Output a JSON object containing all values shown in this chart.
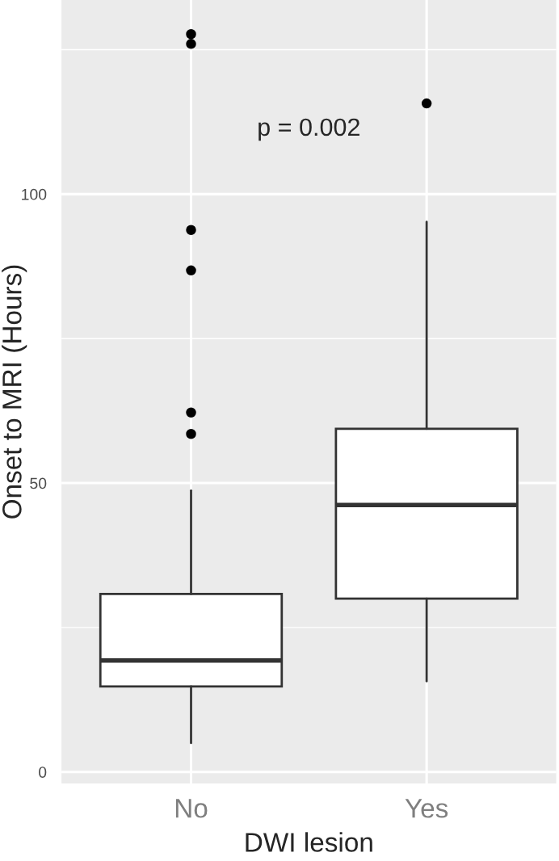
{
  "chart_data": {
    "type": "box",
    "xlabel": "DWI lesion",
    "ylabel": "Onset to MRI (Hours)",
    "categories": [
      "No",
      "Yes"
    ],
    "boxes": [
      {
        "low": 5,
        "q1": 14.8,
        "median": 19.3,
        "q3": 30.8,
        "high": 48.7,
        "outliers": [
          58.5,
          62.2,
          86.8,
          93.8,
          126,
          127.7
        ]
      },
      {
        "low": 15.7,
        "q1": 30,
        "median": 46.2,
        "q3": 59.4,
        "high": 95.2,
        "outliers": [
          115.7
        ]
      }
    ],
    "ylim": [
      -2,
      133.6
    ],
    "yticks": [
      0,
      50,
      100
    ],
    "grid": true,
    "annotations": [
      "p = 0.002"
    ]
  }
}
